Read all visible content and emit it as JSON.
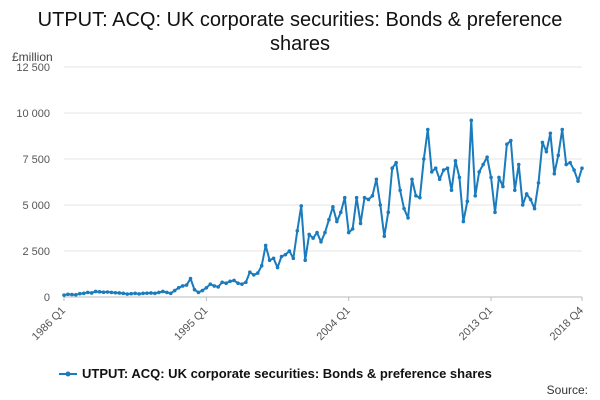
{
  "chart_data": {
    "type": "line",
    "title_lines": [
      "UTPUT: ACQ: UK corporate securities: Bonds & preference",
      "shares"
    ],
    "unit_label": "£million",
    "source_label": "Source:",
    "ylim": [
      0,
      12500
    ],
    "y_ticks": [
      {
        "value": 0,
        "label": "0"
      },
      {
        "value": 2500,
        "label": "2 500"
      },
      {
        "value": 5000,
        "label": "5 000"
      },
      {
        "value": 7500,
        "label": "7 500"
      },
      {
        "value": 10000,
        "label": "10 000"
      },
      {
        "value": 12500,
        "label": "12 500"
      }
    ],
    "x_ticks": [
      {
        "index": 0,
        "label": "1986 Q1"
      },
      {
        "index": 36,
        "label": "1995 Q1"
      },
      {
        "index": 72,
        "label": "2004 Q1"
      },
      {
        "index": 108,
        "label": "2013 Q1"
      },
      {
        "index": 131,
        "label": "2018 Q4"
      }
    ],
    "grid": true,
    "legend_position": "bottom",
    "series": [
      {
        "name": "UTPUT: ACQ: UK corporate securities: Bonds & preference shares",
        "color": "#1a7bbd",
        "values": [
          100,
          150,
          130,
          120,
          180,
          200,
          250,
          220,
          300,
          280,
          260,
          270,
          250,
          230,
          220,
          200,
          160,
          180,
          200,
          170,
          200,
          210,
          220,
          200,
          250,
          300,
          250,
          200,
          350,
          500,
          600,
          650,
          1000,
          400,
          250,
          350,
          500,
          700,
          600,
          550,
          800,
          750,
          850,
          900,
          750,
          700,
          800,
          1350,
          1200,
          1300,
          1700,
          2800,
          2000,
          2100,
          1600,
          2200,
          2300,
          2500,
          2100,
          3600,
          4950,
          2000,
          3400,
          3200,
          3500,
          3000,
          3500,
          4200,
          4900,
          4100,
          4600,
          5400,
          3500,
          3700,
          5400,
          4000,
          5400,
          5300,
          5500,
          6400,
          5000,
          3300,
          4600,
          7000,
          7300,
          5800,
          4800,
          4300,
          6400,
          5500,
          5400,
          7500,
          9100,
          6800,
          7000,
          6400,
          6900,
          7000,
          5800,
          7400,
          6500,
          4100,
          5200,
          9600,
          5500,
          6800,
          7200,
          7600,
          6500,
          4600,
          6500,
          6000,
          8300,
          8500,
          5800,
          7200,
          5000,
          5600,
          5300,
          4800,
          6200,
          8400,
          7900,
          8900,
          6700,
          7700,
          9100,
          7200,
          7300,
          6900,
          6300,
          7000
        ]
      }
    ]
  }
}
